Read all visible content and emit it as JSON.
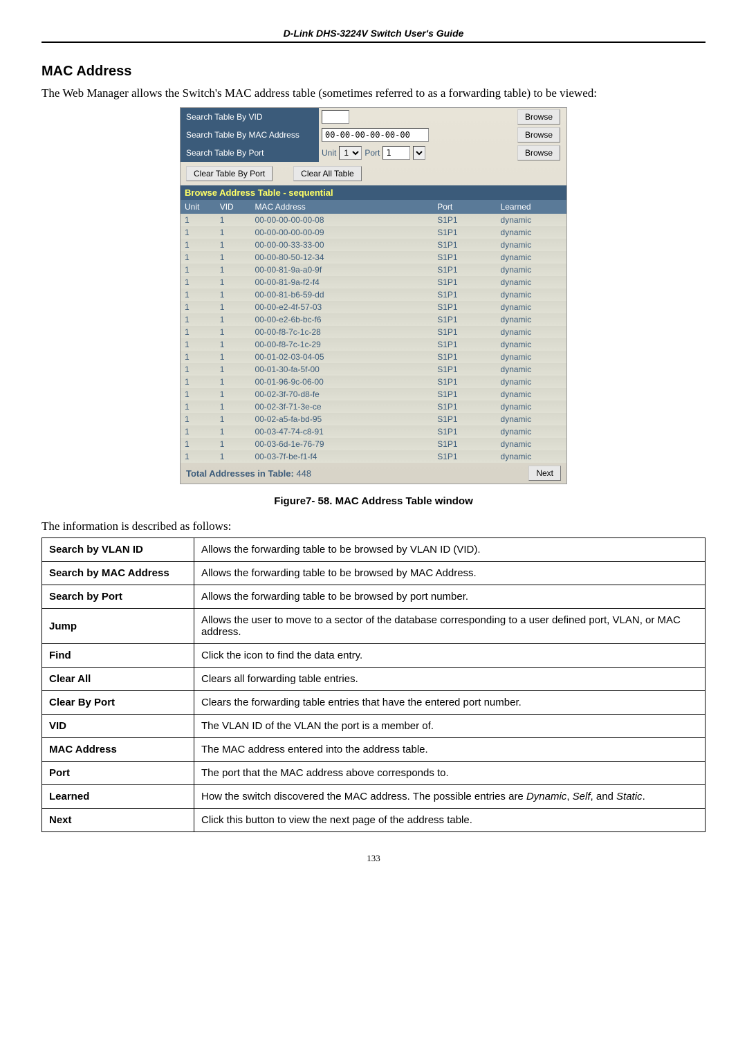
{
  "header": {
    "title": "D-Link DHS-3224V Switch User's Guide"
  },
  "section": {
    "heading": "MAC Address",
    "intro": "The Web Manager allows the Switch's MAC address table (sometimes referred to as a forwarding table) to be viewed:"
  },
  "panel": {
    "search_vid_label": "Search Table By VID",
    "search_mac_label": "Search Table By MAC Address",
    "search_port_label": "Search Table By Port",
    "vid_value": "",
    "mac_value": "00-00-00-00-00-00",
    "unit_label": "Unit",
    "port_label": "Port",
    "unit_value": "1",
    "port_value": "1",
    "browse_btn": "Browse",
    "clear_by_port_btn": "Clear Table By Port",
    "clear_all_btn": "Clear All Table",
    "table_title": "Browse Address Table - sequential",
    "columns": {
      "unit": "Unit",
      "vid": "VID",
      "mac": "MAC Address",
      "port": "Port",
      "learned": "Learned"
    },
    "rows": [
      {
        "unit": "1",
        "vid": "1",
        "mac": "00-00-00-00-00-08",
        "port": "S1P1",
        "learned": "dynamic"
      },
      {
        "unit": "1",
        "vid": "1",
        "mac": "00-00-00-00-00-09",
        "port": "S1P1",
        "learned": "dynamic"
      },
      {
        "unit": "1",
        "vid": "1",
        "mac": "00-00-00-33-33-00",
        "port": "S1P1",
        "learned": "dynamic"
      },
      {
        "unit": "1",
        "vid": "1",
        "mac": "00-00-80-50-12-34",
        "port": "S1P1",
        "learned": "dynamic"
      },
      {
        "unit": "1",
        "vid": "1",
        "mac": "00-00-81-9a-a0-9f",
        "port": "S1P1",
        "learned": "dynamic"
      },
      {
        "unit": "1",
        "vid": "1",
        "mac": "00-00-81-9a-f2-f4",
        "port": "S1P1",
        "learned": "dynamic"
      },
      {
        "unit": "1",
        "vid": "1",
        "mac": "00-00-81-b6-59-dd",
        "port": "S1P1",
        "learned": "dynamic"
      },
      {
        "unit": "1",
        "vid": "1",
        "mac": "00-00-e2-4f-57-03",
        "port": "S1P1",
        "learned": "dynamic"
      },
      {
        "unit": "1",
        "vid": "1",
        "mac": "00-00-e2-6b-bc-f6",
        "port": "S1P1",
        "learned": "dynamic"
      },
      {
        "unit": "1",
        "vid": "1",
        "mac": "00-00-f8-7c-1c-28",
        "port": "S1P1",
        "learned": "dynamic"
      },
      {
        "unit": "1",
        "vid": "1",
        "mac": "00-00-f8-7c-1c-29",
        "port": "S1P1",
        "learned": "dynamic"
      },
      {
        "unit": "1",
        "vid": "1",
        "mac": "00-01-02-03-04-05",
        "port": "S1P1",
        "learned": "dynamic"
      },
      {
        "unit": "1",
        "vid": "1",
        "mac": "00-01-30-fa-5f-00",
        "port": "S1P1",
        "learned": "dynamic"
      },
      {
        "unit": "1",
        "vid": "1",
        "mac": "00-01-96-9c-06-00",
        "port": "S1P1",
        "learned": "dynamic"
      },
      {
        "unit": "1",
        "vid": "1",
        "mac": "00-02-3f-70-d8-fe",
        "port": "S1P1",
        "learned": "dynamic"
      },
      {
        "unit": "1",
        "vid": "1",
        "mac": "00-02-3f-71-3e-ce",
        "port": "S1P1",
        "learned": "dynamic"
      },
      {
        "unit": "1",
        "vid": "1",
        "mac": "00-02-a5-fa-bd-95",
        "port": "S1P1",
        "learned": "dynamic"
      },
      {
        "unit": "1",
        "vid": "1",
        "mac": "00-03-47-74-c8-91",
        "port": "S1P1",
        "learned": "dynamic"
      },
      {
        "unit": "1",
        "vid": "1",
        "mac": "00-03-6d-1e-76-79",
        "port": "S1P1",
        "learned": "dynamic"
      },
      {
        "unit": "1",
        "vid": "1",
        "mac": "00-03-7f-be-f1-f4",
        "port": "S1P1",
        "learned": "dynamic"
      }
    ],
    "footer_label": "Total Addresses in Table:",
    "footer_value": "448",
    "next_btn": "Next"
  },
  "caption": "Figure7- 58.  MAC Address Table window",
  "info_line": "The information is described as follows:",
  "desc": {
    "rows": [
      {
        "k": "Search by VLAN ID",
        "v": "Allows the forwarding table to be browsed by VLAN ID (VID)."
      },
      {
        "k": "Search by MAC Address",
        "v": "Allows the forwarding table to be browsed by MAC Address."
      },
      {
        "k": "Search by Port",
        "v": "Allows the forwarding table to be browsed by port number."
      },
      {
        "k": "Jump",
        "v": "Allows the user to move to a sector of the database corresponding to a user defined port, VLAN, or MAC address."
      },
      {
        "k": "Find",
        "v": "Click the icon to find the data entry."
      },
      {
        "k": "Clear All",
        "v": "Clears all forwarding table entries."
      },
      {
        "k": "Clear By Port",
        "v": "Clears the forwarding table entries that have the entered port number."
      },
      {
        "k": "VID",
        "v": "The VLAN ID of the VLAN the port is a member of."
      },
      {
        "k": "MAC Address",
        "v": "The MAC address entered into the address table."
      },
      {
        "k": "Port",
        "v": "The port that the MAC address above corresponds to."
      },
      {
        "k": "Learned",
        "v": "How the switch discovered the MAC address. The possible entries are <span class=\"italic\">Dynamic</span>, <span class=\"italic\">Self</span>, and <span class=\"italic\">Static</span>."
      },
      {
        "k": "Next",
        "v": "Click this button to view the next page of the address table."
      }
    ]
  },
  "page_num": "133"
}
